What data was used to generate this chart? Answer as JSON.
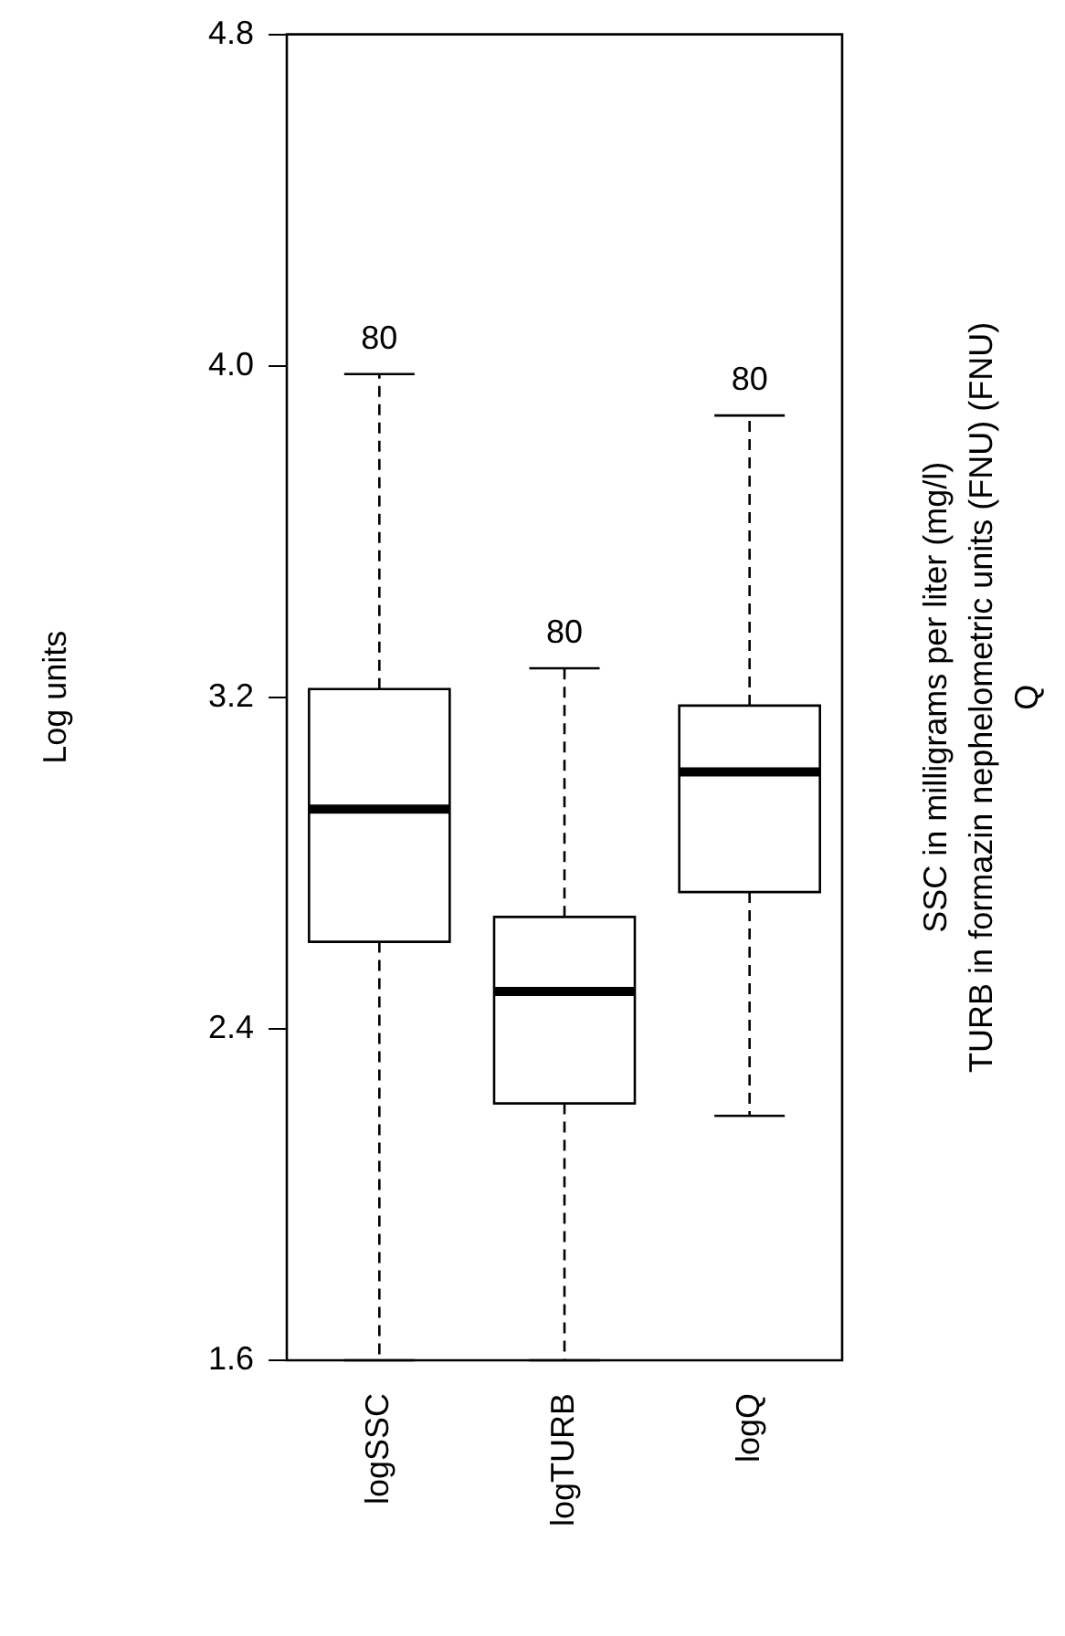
{
  "chart_data": {
    "type": "box",
    "ylabel": "Log units",
    "categories": [
      "logSSC",
      "logTURB",
      "logQ"
    ],
    "boxes": [
      {
        "low": 1.6,
        "q1": 2.61,
        "median": 2.93,
        "q3": 3.22,
        "high": 3.98
      },
      {
        "low": 1.6,
        "q1": 2.22,
        "median": 2.49,
        "q3": 2.67,
        "high": 3.27
      },
      {
        "low": 2.19,
        "q1": 2.73,
        "median": 3.02,
        "q3": 3.18,
        "high": 3.88
      }
    ],
    "ylim": [
      1.6,
      4.8
    ],
    "yticks": [
      1.6,
      2.4,
      3.2,
      {
        "value": 4,
        "label": "4.0"
      },
      4.8
    ],
    "grid": false,
    "legend": false,
    "annotations": [
      "80",
      "80",
      "80",
      "SSC in milligrams per liter (mg/l)",
      "TURB in formazin nephelometric units (FNU) (FNU)",
      "Q"
    ]
  }
}
